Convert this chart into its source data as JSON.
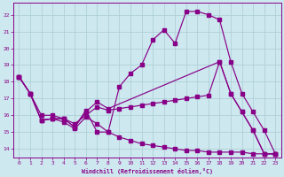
{
  "xlabel": "Windchill (Refroidissement éolien,°C)",
  "bg_color": "#cde8ee",
  "line_color": "#880088",
  "grid_color": "#aaccd4",
  "xlim": [
    -0.5,
    23.5
  ],
  "ylim": [
    13.5,
    22.7
  ],
  "xticks": [
    0,
    1,
    2,
    3,
    4,
    5,
    6,
    7,
    8,
    9,
    10,
    11,
    12,
    13,
    14,
    15,
    16,
    17,
    18,
    19,
    20,
    21,
    22,
    23
  ],
  "yticks": [
    14,
    15,
    16,
    17,
    18,
    19,
    20,
    21,
    22
  ],
  "line1_x": [
    0,
    1,
    2,
    3,
    4,
    5,
    6,
    7,
    8,
    9,
    10,
    11,
    12,
    13,
    14,
    15,
    16,
    17,
    18,
    19,
    20,
    21,
    22,
    23
  ],
  "line1_y": [
    18.3,
    17.3,
    15.7,
    15.8,
    15.8,
    15.3,
    16.3,
    15.0,
    15.0,
    17.7,
    18.5,
    19.0,
    20.5,
    21.1,
    20.3,
    22.2,
    22.2,
    22.0,
    21.7,
    19.2,
    17.3,
    16.2,
    15.1,
    13.7
  ],
  "line2_x": [
    0,
    1,
    2,
    3,
    4,
    5,
    6,
    7,
    8,
    18,
    19,
    20,
    21,
    22,
    23
  ],
  "line2_y": [
    18.3,
    17.3,
    15.7,
    15.8,
    15.8,
    15.3,
    16.2,
    16.8,
    16.4,
    19.2,
    17.3,
    16.2,
    15.1,
    13.7,
    13.7
  ],
  "line3_x": [
    0,
    1,
    2,
    3,
    4,
    5,
    6,
    7,
    8,
    9,
    10,
    11,
    12,
    13,
    14,
    15,
    16,
    17,
    18,
    19,
    20,
    21,
    22,
    23
  ],
  "line3_y": [
    18.3,
    17.3,
    16.0,
    16.0,
    15.8,
    15.5,
    16.0,
    16.5,
    16.3,
    16.4,
    16.5,
    16.6,
    16.7,
    16.8,
    16.9,
    17.0,
    17.1,
    17.2,
    19.2,
    17.3,
    16.2,
    15.1,
    13.7,
    13.7
  ],
  "line4_x": [
    0,
    1,
    2,
    3,
    4,
    5,
    6,
    7,
    8,
    9,
    10,
    11,
    12,
    13,
    14,
    15,
    16,
    17,
    18,
    19,
    20,
    21,
    22,
    23
  ],
  "line4_y": [
    18.3,
    17.3,
    15.7,
    15.8,
    15.6,
    15.2,
    15.9,
    15.5,
    15.0,
    14.7,
    14.5,
    14.3,
    14.2,
    14.1,
    14.0,
    13.9,
    13.9,
    13.8,
    13.8,
    13.8,
    13.8,
    13.7,
    13.7,
    13.7
  ]
}
